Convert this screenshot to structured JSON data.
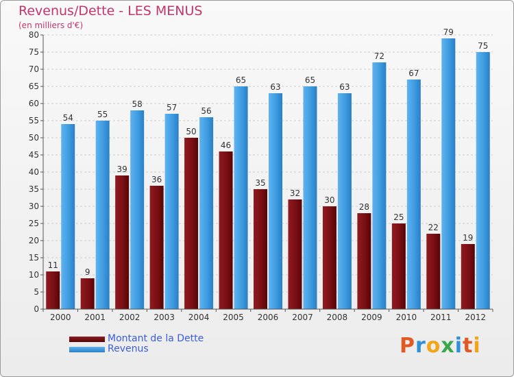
{
  "header": {
    "title": "Revenus/Dette - LES MENUS",
    "subtitle": "(en milliers d'€)"
  },
  "legend": {
    "items": [
      {
        "label": "Montant de la Dette",
        "color": "#7a0f14"
      },
      {
        "label": "Revenus",
        "color": "#3f9be0"
      }
    ]
  },
  "logo": {
    "letters": [
      {
        "char": "P",
        "color": "#e05a24"
      },
      {
        "char": "r",
        "color": "#2f8fd8"
      },
      {
        "char": "o",
        "color": "#f2a516"
      },
      {
        "char": "x",
        "color": "#3aa84a"
      },
      {
        "char": "i",
        "color": "#2f8fd8"
      },
      {
        "char": "t",
        "color": "#e05a24"
      },
      {
        "char": "i",
        "color": "#f2a516"
      }
    ]
  },
  "chart_data": {
    "type": "bar",
    "title": "Revenus/Dette - LES MENUS",
    "subtitle": "(en milliers d'€)",
    "xlabel": "",
    "ylabel": "",
    "categories": [
      "2000",
      "2001",
      "2002",
      "2003",
      "2004",
      "2005",
      "2006",
      "2007",
      "2008",
      "2009",
      "2010",
      "2011",
      "2012"
    ],
    "series": [
      {
        "name": "Montant de la Dette",
        "color": "#7a0f14",
        "values": [
          11,
          9,
          39,
          36,
          50,
          46,
          35,
          32,
          30,
          28,
          25,
          22,
          19
        ]
      },
      {
        "name": "Revenus",
        "color": "#3f9be0",
        "values": [
          54,
          55,
          58,
          57,
          56,
          65,
          63,
          65,
          63,
          72,
          67,
          79,
          75
        ]
      }
    ],
    "ylim": [
      0,
      80
    ],
    "yticks": [
      0,
      5,
      10,
      15,
      20,
      25,
      30,
      35,
      40,
      45,
      50,
      55,
      60,
      65,
      70,
      75,
      80
    ],
    "grid": true,
    "legend_position": "bottom-left"
  }
}
